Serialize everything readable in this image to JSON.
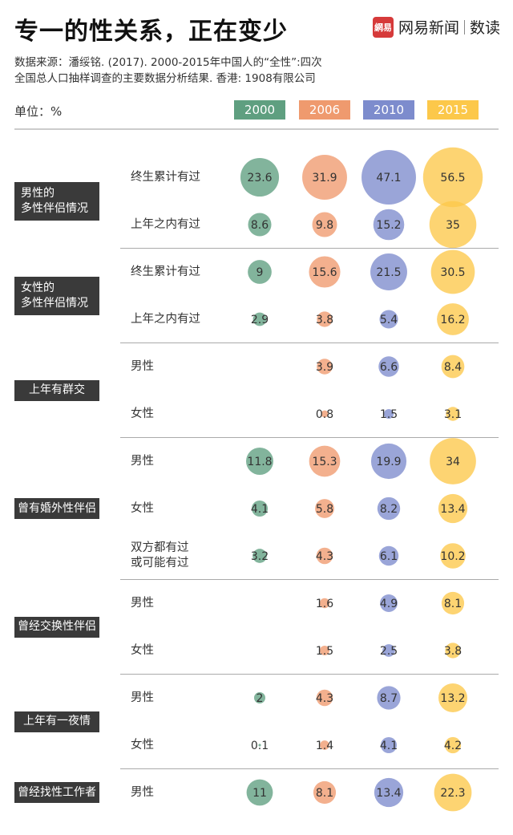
{
  "title": "专一的性关系，正在变少",
  "logo": {
    "mark": "網易",
    "name": "网易新闻",
    "brand": "数读"
  },
  "source_line1": "数据来源：潘绥铭. (2017). 2000-2015年中国人的“全性”:四次",
  "source_line2": "全国总人口抽样调查的主要数据分析结果. 香港: 1908有限公司",
  "unit": "单位：%",
  "colors": {
    "2000": "#5f9f80",
    "2006": "#ef9a6e",
    "2010": "#7d8ccd",
    "2015": "#fcc84a"
  },
  "chart_data": {
    "type": "bubble",
    "unit": "%",
    "years": [
      "2000",
      "2006",
      "2010",
      "2015"
    ],
    "groups": [
      {
        "name": "男性的\n多性伴侣情况",
        "rows": [
          {
            "label": "终生累计有过",
            "values": [
              23.6,
              31.9,
              47.1,
              56.5
            ]
          },
          {
            "label": "上年之内有过",
            "values": [
              8.6,
              9.8,
              15.2,
              35
            ]
          }
        ]
      },
      {
        "name": "女性的\n多性伴侣情况",
        "rows": [
          {
            "label": "终生累计有过",
            "values": [
              9,
              15.6,
              21.5,
              30.5
            ]
          },
          {
            "label": "上年之内有过",
            "values": [
              2.9,
              3.8,
              5.4,
              16.2
            ]
          }
        ]
      },
      {
        "name": "上年有群交",
        "rows": [
          {
            "label": "男性",
            "values": [
              null,
              3.9,
              6.6,
              8.4
            ]
          },
          {
            "label": "女性",
            "values": [
              null,
              0.8,
              1.5,
              3.1
            ]
          }
        ]
      },
      {
        "name": "曾有婚外性伴侣",
        "rows": [
          {
            "label": "男性",
            "values": [
              11.8,
              15.3,
              19.9,
              34
            ]
          },
          {
            "label": "女性",
            "values": [
              4.1,
              5.8,
              8.2,
              13.4
            ]
          },
          {
            "label": "双方都有过\n或可能有过",
            "values": [
              3.2,
              4.3,
              6.1,
              10.2
            ]
          }
        ]
      },
      {
        "name": "曾经交换性伴侣",
        "rows": [
          {
            "label": "男性",
            "values": [
              null,
              1.6,
              4.9,
              8.1
            ]
          },
          {
            "label": "女性",
            "values": [
              null,
              1.5,
              2.5,
              3.8
            ]
          }
        ]
      },
      {
        "name": "上年有一夜情",
        "rows": [
          {
            "label": "男性",
            "values": [
              2,
              4.3,
              8.7,
              13.2
            ]
          },
          {
            "label": "女性",
            "values": [
              0.1,
              1.4,
              4.1,
              4.2
            ]
          }
        ]
      },
      {
        "name": "曾经找性工作者",
        "rows": [
          {
            "label": "男性",
            "values": [
              11,
              8.1,
              13.4,
              22.3
            ]
          }
        ]
      }
    ]
  }
}
